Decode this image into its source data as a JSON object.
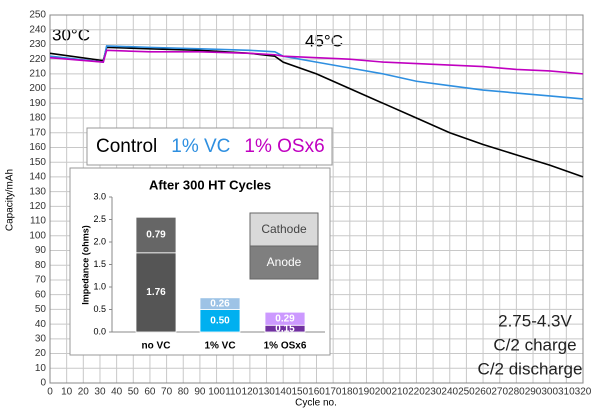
{
  "chart_data": [
    {
      "type": "line",
      "x_label": "Cycle no.",
      "y_label": "Capacity/mAh",
      "annotations": [
        "30°C",
        "45°C",
        "2.75-4.3V",
        "C/2 charge",
        "C/2 discharge"
      ],
      "x": [
        0,
        32,
        34,
        60,
        90,
        120,
        135,
        140,
        160,
        180,
        200,
        220,
        240,
        260,
        280,
        300,
        320
      ],
      "series": [
        {
          "name": "Control",
          "color": "#000000",
          "values": [
            224,
            219,
            228,
            227,
            226,
            224,
            222,
            218,
            210,
            200,
            190,
            180,
            170,
            162,
            155,
            148,
            140
          ]
        },
        {
          "name": "1% VC",
          "color": "#2e8fe0",
          "values": [
            222,
            218,
            229,
            228,
            227,
            226,
            225,
            222,
            218,
            214,
            210,
            205,
            202,
            199,
            197,
            195,
            193
          ]
        },
        {
          "name": "1% OSx6",
          "color": "#c000c0",
          "values": [
            221,
            218,
            226,
            225,
            225,
            224,
            223,
            222,
            221,
            220,
            218,
            217,
            216,
            215,
            213,
            212,
            210
          ]
        }
      ],
      "xlim": [
        0,
        320
      ],
      "xticks": [
        0,
        10,
        20,
        30,
        40,
        50,
        60,
        70,
        80,
        90,
        100,
        110,
        120,
        130,
        140,
        150,
        160,
        170,
        180,
        190,
        200,
        210,
        220,
        230,
        240,
        250,
        260,
        270,
        280,
        290,
        300,
        310,
        320
      ],
      "ylim": [
        0,
        250
      ],
      "yticks": [
        0,
        10,
        20,
        30,
        40,
        50,
        60,
        70,
        80,
        90,
        100,
        110,
        120,
        130,
        140,
        150,
        160,
        170,
        180,
        190,
        200,
        210,
        220,
        230,
        240,
        250
      ],
      "grid": true
    },
    {
      "type": "stacked_bar",
      "title": "After 300 HT Cycles",
      "y_label": "Impedance (ohms)",
      "categories": [
        "no VC",
        "1% VC",
        "1% OSx6"
      ],
      "series": [
        {
          "name": "Anode",
          "color": "#7f7f7f",
          "colors": [
            "#555555",
            "#00b0f0",
            "#7030a0"
          ],
          "values": [
            1.76,
            0.5,
            0.15
          ],
          "value_labels": [
            "1.76",
            "0.50",
            "0.15"
          ]
        },
        {
          "name": "Cathode",
          "color": "#d9d9d9",
          "colors": [
            "#666666",
            "#9dc3e6",
            "#cc99ff"
          ],
          "values": [
            0.79,
            0.26,
            0.29
          ],
          "value_labels": [
            "0.79",
            "0.26",
            "0.29"
          ]
        }
      ],
      "ylim": [
        0,
        3
      ],
      "yticks": [
        {
          "value": 0,
          "label": "0.0"
        },
        {
          "value": 0.5,
          "label": "0.5"
        },
        {
          "value": 1,
          "label": "1.0"
        },
        {
          "value": 1.5,
          "label": "1.5"
        },
        {
          "value": 2,
          "label": "2.0"
        },
        {
          "value": 2.5,
          "label": "2.5"
        },
        {
          "value": 3,
          "label": "3.0"
        }
      ]
    }
  ]
}
